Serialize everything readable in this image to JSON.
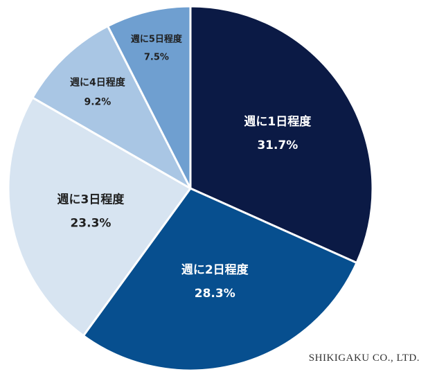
{
  "chart_data": {
    "type": "pie",
    "title": "",
    "start_angle": 0,
    "direction": "clockwise",
    "slices": [
      {
        "label": "週に1日程度",
        "value": 31.7,
        "value_text": "31.7%",
        "color": "#0b1a45",
        "label_color": "#ffffff"
      },
      {
        "label": "週に2日程度",
        "value": 28.3,
        "value_text": "28.3%",
        "color": "#074f8f",
        "label_color": "#ffffff"
      },
      {
        "label": "週に3日程度",
        "value": 23.3,
        "value_text": "23.3%",
        "color": "#d7e4f1",
        "label_color": "#1f1f1f"
      },
      {
        "label": "週に4日程度",
        "value": 9.2,
        "value_text": "9.2%",
        "color": "#a9c6e4",
        "label_color": "#1f1f1f"
      },
      {
        "label": "週に5日程度",
        "value": 7.5,
        "value_text": "7.5%",
        "color": "#6f9fd0",
        "label_color": "#1f1f1f"
      }
    ]
  },
  "credit": "SHIKIGAKU CO., LTD."
}
